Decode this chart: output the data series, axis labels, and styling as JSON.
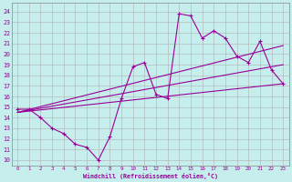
{
  "xlabel": "Windchill (Refroidissement éolien,°C)",
  "bg_color": "#c5eeec",
  "grid_color": "#b0b0b0",
  "line_color": "#990099",
  "x_ticks": [
    0,
    1,
    2,
    3,
    4,
    5,
    6,
    7,
    8,
    9,
    10,
    11,
    12,
    13,
    14,
    15,
    16,
    17,
    18,
    19,
    20,
    21,
    22,
    23
  ],
  "y_ticks": [
    10,
    11,
    12,
    13,
    14,
    15,
    16,
    17,
    18,
    19,
    20,
    21,
    22,
    23,
    24
  ],
  "xlim": [
    -0.5,
    23.5
  ],
  "ylim": [
    9.5,
    24.8
  ],
  "series1_x": [
    0,
    1,
    2,
    3,
    4,
    5,
    6,
    7,
    8,
    9,
    10,
    11,
    12,
    13,
    14,
    15,
    16,
    17,
    18,
    19,
    20,
    21,
    22,
    23
  ],
  "series1_y": [
    14.8,
    14.8,
    14.0,
    13.0,
    12.5,
    11.5,
    11.2,
    10.0,
    12.2,
    15.8,
    18.8,
    19.2,
    16.2,
    15.8,
    23.8,
    23.6,
    21.5,
    22.2,
    21.5,
    19.8,
    19.2,
    21.2,
    18.5,
    17.2
  ],
  "line2_x": [
    0,
    23
  ],
  "line2_y": [
    14.5,
    17.2
  ],
  "line3_x": [
    0,
    23
  ],
  "line3_y": [
    14.5,
    20.8
  ],
  "line4_x": [
    0,
    23
  ],
  "line4_y": [
    14.5,
    19.0
  ]
}
